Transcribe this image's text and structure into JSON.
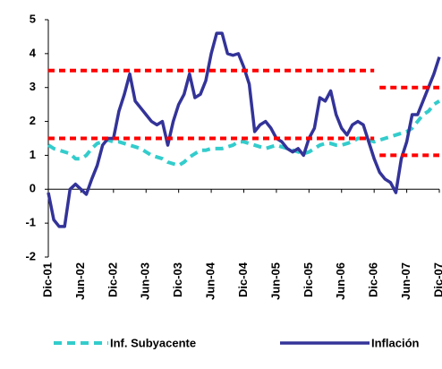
{
  "chart_data": {
    "type": "line",
    "categories": [
      "Dic-01",
      null,
      null,
      null,
      null,
      null,
      "Jun-02",
      null,
      null,
      null,
      null,
      null,
      "Dic-02",
      null,
      null,
      null,
      null,
      null,
      "Jun-03",
      null,
      null,
      null,
      null,
      null,
      "Dic-03",
      null,
      null,
      null,
      null,
      null,
      "Jun-04",
      null,
      null,
      null,
      null,
      null,
      "Dic-04",
      null,
      null,
      null,
      null,
      null,
      "Jun-05",
      null,
      null,
      null,
      null,
      null,
      "Dic-05",
      null,
      null,
      null,
      null,
      null,
      "Jun-06",
      null,
      null,
      null,
      null,
      null,
      "Dic-06",
      null,
      null,
      null,
      null,
      null,
      "Jun-07",
      null,
      null,
      null,
      null,
      null,
      "Dic-07"
    ],
    "series": [
      {
        "name": "Inf. Subyacente",
        "color": "#33cccc",
        "dashed": true,
        "values": [
          1.3,
          1.2,
          1.15,
          1.1,
          1.05,
          0.9,
          0.9,
          1.0,
          1.2,
          1.35,
          1.4,
          1.45,
          1.4,
          1.4,
          1.35,
          1.3,
          1.25,
          1.2,
          1.1,
          1.0,
          0.95,
          0.9,
          0.8,
          0.75,
          0.7,
          0.8,
          0.95,
          1.05,
          1.15,
          1.15,
          1.2,
          1.2,
          1.2,
          1.25,
          1.3,
          1.4,
          1.4,
          1.35,
          1.3,
          1.25,
          1.2,
          1.25,
          1.3,
          1.25,
          1.2,
          1.15,
          1.1,
          1.05,
          1.1,
          1.2,
          1.3,
          1.35,
          1.35,
          1.3,
          1.3,
          1.35,
          1.4,
          1.5,
          1.5,
          1.45,
          1.4,
          1.45,
          1.5,
          1.55,
          1.6,
          1.65,
          1.7,
          1.8,
          2.0,
          2.2,
          2.3,
          2.5,
          2.6
        ]
      },
      {
        "name": "Inflación",
        "color": "#333399",
        "dashed": false,
        "values": [
          -0.1,
          -0.9,
          -1.1,
          -1.1,
          0.0,
          0.15,
          0.0,
          -0.15,
          0.3,
          0.7,
          1.3,
          1.5,
          1.5,
          2.3,
          2.8,
          3.4,
          2.6,
          2.4,
          2.2,
          2.0,
          1.9,
          2.0,
          1.3,
          2.0,
          2.5,
          2.8,
          3.4,
          2.7,
          2.8,
          3.2,
          4.0,
          4.6,
          4.6,
          4.0,
          3.95,
          4.0,
          3.6,
          3.1,
          1.7,
          1.9,
          2.0,
          1.8,
          1.5,
          1.4,
          1.2,
          1.1,
          1.2,
          1.0,
          1.5,
          1.8,
          2.7,
          2.6,
          2.9,
          2.2,
          1.8,
          1.6,
          1.9,
          2.0,
          1.9,
          1.4,
          0.9,
          0.5,
          0.3,
          0.2,
          -0.1,
          0.9,
          1.4,
          2.2,
          2.2,
          2.6,
          3.0,
          3.4,
          3.9
        ]
      },
      {
        "color": "#ff0000",
        "dashed": true,
        "values": [
          3.5,
          3.5,
          3.5,
          3.5,
          3.5,
          3.5,
          3.5,
          3.5,
          3.5,
          3.5,
          3.5,
          3.5,
          3.5,
          3.5,
          3.5,
          3.5,
          3.5,
          3.5,
          3.5,
          3.5,
          3.5,
          3.5,
          3.5,
          3.5,
          3.5,
          3.5,
          3.5,
          3.5,
          3.5,
          3.5,
          3.5,
          3.5,
          3.5,
          3.5,
          3.5,
          3.5,
          3.5,
          3.5,
          3.5,
          3.5,
          3.5,
          3.5,
          3.5,
          3.5,
          3.5,
          3.5,
          3.5,
          3.5,
          3.5,
          3.5,
          3.5,
          3.5,
          3.5,
          3.5,
          3.5,
          3.5,
          3.5,
          3.5,
          3.5,
          3.5,
          3.5,
          null,
          null,
          null,
          null,
          null,
          null,
          null,
          null,
          null,
          null,
          null,
          null
        ]
      },
      {
        "color": "#ff0000",
        "dashed": true,
        "values": [
          1.5,
          1.5,
          1.5,
          1.5,
          1.5,
          1.5,
          1.5,
          1.5,
          1.5,
          1.5,
          1.5,
          1.5,
          1.5,
          1.5,
          1.5,
          1.5,
          1.5,
          1.5,
          1.5,
          1.5,
          1.5,
          1.5,
          1.5,
          1.5,
          1.5,
          1.5,
          1.5,
          1.5,
          1.5,
          1.5,
          1.5,
          1.5,
          1.5,
          1.5,
          1.5,
          1.5,
          1.5,
          1.5,
          1.5,
          1.5,
          1.5,
          1.5,
          1.5,
          1.5,
          1.5,
          1.5,
          1.5,
          1.5,
          1.5,
          1.5,
          1.5,
          1.5,
          1.5,
          1.5,
          1.5,
          1.5,
          1.5,
          1.5,
          1.5,
          1.5,
          1.5,
          null,
          null,
          null,
          null,
          null,
          null,
          null,
          null,
          null,
          null,
          null,
          null
        ]
      },
      {
        "color": "#ff0000",
        "dashed": true,
        "values": [
          null,
          null,
          null,
          null,
          null,
          null,
          null,
          null,
          null,
          null,
          null,
          null,
          null,
          null,
          null,
          null,
          null,
          null,
          null,
          null,
          null,
          null,
          null,
          null,
          null,
          null,
          null,
          null,
          null,
          null,
          null,
          null,
          null,
          null,
          null,
          null,
          null,
          null,
          null,
          null,
          null,
          null,
          null,
          null,
          null,
          null,
          null,
          null,
          null,
          null,
          null,
          null,
          null,
          null,
          null,
          null,
          null,
          null,
          null,
          null,
          null,
          3,
          3,
          3,
          3,
          3,
          3,
          3,
          3,
          3,
          3,
          3,
          3
        ]
      },
      {
        "color": "#ff0000",
        "dashed": true,
        "values": [
          null,
          null,
          null,
          null,
          null,
          null,
          null,
          null,
          null,
          null,
          null,
          null,
          null,
          null,
          null,
          null,
          null,
          null,
          null,
          null,
          null,
          null,
          null,
          null,
          null,
          null,
          null,
          null,
          null,
          null,
          null,
          null,
          null,
          null,
          null,
          null,
          null,
          null,
          null,
          null,
          null,
          null,
          null,
          null,
          null,
          null,
          null,
          null,
          null,
          null,
          null,
          null,
          null,
          null,
          null,
          null,
          null,
          null,
          null,
          null,
          null,
          1,
          1,
          1,
          1,
          1,
          1,
          1,
          1,
          1,
          1,
          1,
          1
        ]
      }
    ],
    "ylim": [
      -2,
      5
    ],
    "yticks": [
      -2,
      -1,
      0,
      1,
      2,
      3,
      4,
      5
    ],
    "legend": "bottom"
  }
}
